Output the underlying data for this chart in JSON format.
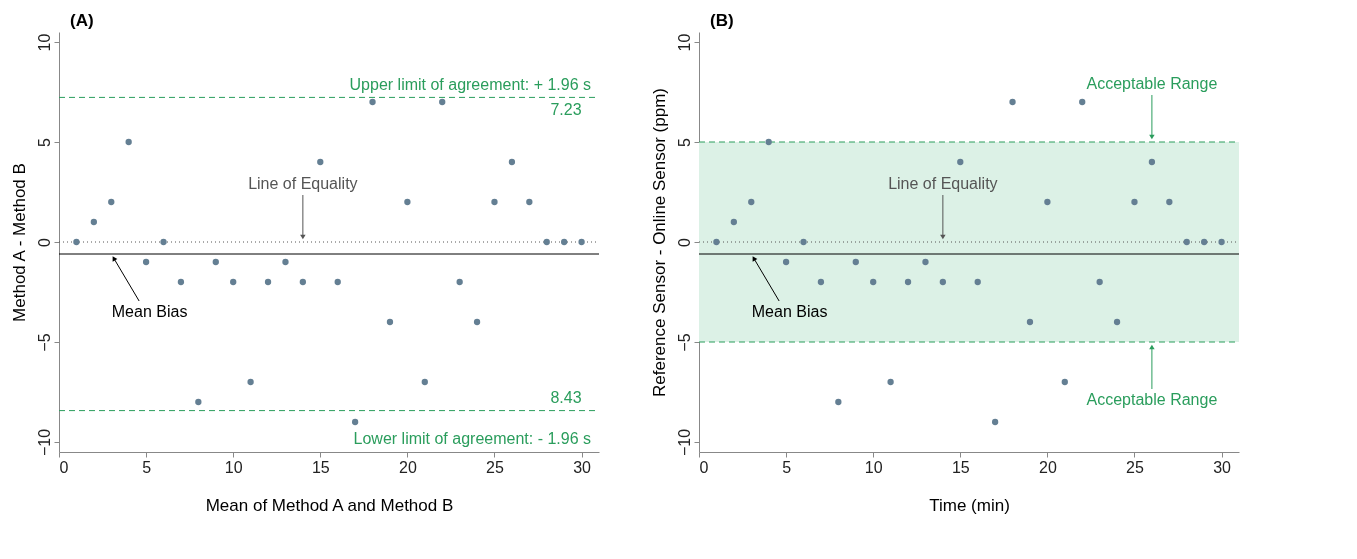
{
  "chart_data": [
    {
      "type": "scatter",
      "title": "(A)",
      "xlabel": "Mean of Method A and Method B",
      "ylabel": "Method A - Method B",
      "x": [
        1,
        2,
        3,
        4,
        5,
        6,
        7,
        8,
        9,
        10,
        11,
        12,
        13,
        14,
        15,
        16,
        17,
        18,
        19,
        20,
        21,
        22,
        23,
        24,
        25,
        26,
        27,
        28,
        29,
        30
      ],
      "series": [
        {
          "color": "#647f93",
          "values": [
            0,
            1,
            2,
            5,
            -1,
            0,
            -2,
            -8,
            -1,
            -2,
            -7,
            -2,
            -1,
            -2,
            4,
            -2,
            -9,
            7,
            -4,
            2,
            -7,
            7,
            -2,
            -4,
            2,
            4,
            2,
            0,
            0,
            0
          ]
        }
      ],
      "marker": "circle",
      "xlim": [
        0,
        31
      ],
      "ylim": [
        -10.5,
        10.5
      ],
      "xticks": [
        0,
        5,
        10,
        15,
        20,
        25,
        30
      ],
      "yticks": [
        -10,
        -5,
        0,
        5,
        10
      ],
      "grid": false,
      "ref_lines": [
        {
          "axis": "y",
          "value": 7.23,
          "label": "Upper limit of agreement: + 1.96 s",
          "color": "#2a9d5c",
          "line_style": "dashed"
        },
        {
          "axis": "y",
          "value": -8.43,
          "label": "Lower limit of agreement: - 1.96 s",
          "color": "#2a9d5c",
          "line_style": "dashed"
        },
        {
          "axis": "y",
          "value": 0,
          "color": "#555555",
          "line_style": "dotted"
        },
        {
          "axis": "y",
          "value": -0.6,
          "color": "#000000",
          "line_style": "solid"
        }
      ],
      "annotations": [
        {
          "text": "7.23",
          "x": 30,
          "y": 7.23
        },
        {
          "text": "8.43",
          "x": 30,
          "y": -8.43
        },
        {
          "text": "Line of Equality",
          "x": 14,
          "y": 0
        },
        {
          "text": "Mean Bias",
          "x": 3,
          "y": -0.6
        }
      ]
    },
    {
      "type": "scatter",
      "title": "(B)",
      "xlabel": "Time (min)",
      "ylabel": "Reference Sensor - Online Sensor (ppm)",
      "x": [
        1,
        2,
        3,
        4,
        5,
        6,
        7,
        8,
        9,
        10,
        11,
        12,
        13,
        14,
        15,
        16,
        17,
        18,
        19,
        20,
        21,
        22,
        23,
        24,
        25,
        26,
        27,
        28,
        29,
        30
      ],
      "series": [
        {
          "color": "#647f93",
          "values": [
            0,
            1,
            2,
            5,
            -1,
            0,
            -2,
            -8,
            -1,
            -2,
            -7,
            -2,
            -1,
            -2,
            4,
            -2,
            -9,
            7,
            -4,
            2,
            -7,
            7,
            -2,
            -4,
            2,
            4,
            2,
            0,
            0,
            0
          ]
        }
      ],
      "marker": "circle",
      "xlim": [
        0,
        31
      ],
      "ylim": [
        -10.5,
        10.5
      ],
      "xticks": [
        0,
        5,
        10,
        15,
        20,
        25,
        30
      ],
      "yticks": [
        -10,
        -5,
        0,
        5,
        10
      ],
      "grid": false,
      "bands": [
        {
          "axis": "y",
          "from": -5,
          "to": 5,
          "color": "#dcf1e6"
        }
      ],
      "ref_lines": [
        {
          "axis": "y",
          "value": 5,
          "color": "#2a9d5c",
          "line_style": "dashed"
        },
        {
          "axis": "y",
          "value": -5,
          "color": "#2a9d5c",
          "line_style": "dashed"
        },
        {
          "axis": "y",
          "value": 0,
          "color": "#555555",
          "line_style": "dotted"
        },
        {
          "axis": "y",
          "value": -0.6,
          "color": "#000000",
          "line_style": "solid"
        }
      ],
      "annotations": [
        {
          "text": "Acceptable Range",
          "x": 26,
          "y": 5
        },
        {
          "text": "Acceptable Range",
          "x": 26,
          "y": -5
        },
        {
          "text": "Line of Equality",
          "x": 14,
          "y": 0
        },
        {
          "text": "Mean Bias",
          "x": 3,
          "y": -0.6
        }
      ]
    }
  ]
}
